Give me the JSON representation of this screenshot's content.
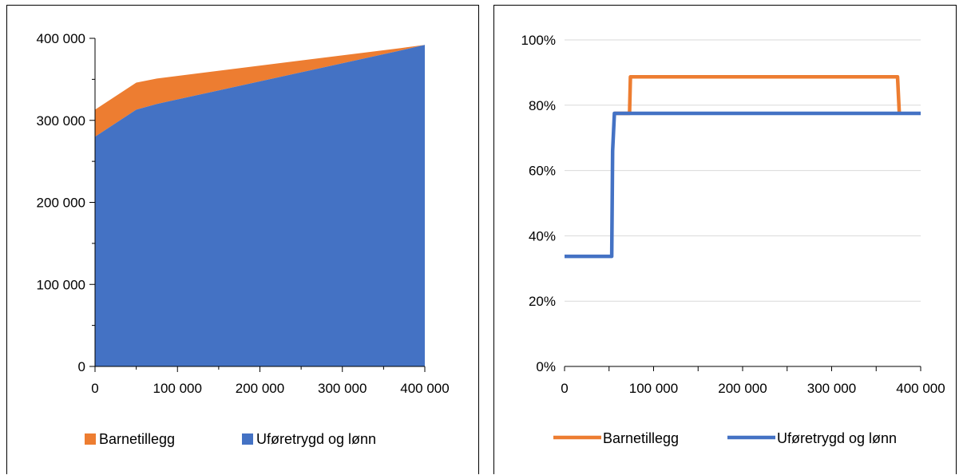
{
  "chart_data": [
    {
      "type": "area",
      "stacked": true,
      "x": [
        0,
        50000,
        75000,
        370000,
        400000
      ],
      "series": [
        {
          "name": "Uføretrygd og lønn",
          "color": "#4472C4",
          "values": [
            280000,
            313000,
            320000,
            385000,
            392000
          ]
        },
        {
          "name": "Barnetillegg",
          "color": "#ED7D31",
          "values": [
            33000,
            33000,
            31000,
            3000,
            0
          ]
        }
      ],
      "xlim": [
        0,
        400000
      ],
      "ylim": [
        0,
        400000
      ],
      "xticks": [
        0,
        100000,
        200000,
        300000,
        400000
      ],
      "xtick_labels": [
        "0",
        "100 000",
        "200 000",
        "300 000",
        "400 000"
      ],
      "yticks": [
        0,
        100000,
        200000,
        300000,
        400000
      ],
      "ytick_labels": [
        "0",
        "100 000",
        "200 000",
        "300 000",
        "400 000"
      ],
      "grid": false,
      "legend": "bottom"
    },
    {
      "type": "line",
      "x": [
        0,
        53000,
        54000,
        56000,
        73000,
        74000,
        76000,
        372000,
        374000,
        376000,
        400000
      ],
      "series": [
        {
          "name": "Barnetillegg",
          "color": "#ED7D31",
          "values": [
            null,
            null,
            null,
            0.775,
            0.775,
            0.887,
            0.887,
            0.887,
            0.887,
            0.775,
            null
          ]
        },
        {
          "name": "Uføretrygd og lønn",
          "color": "#4472C4",
          "values": [
            0.337,
            0.337,
            0.66,
            0.775,
            0.775,
            0.775,
            0.775,
            0.775,
            0.775,
            0.775,
            0.775
          ]
        }
      ],
      "xlim": [
        0,
        400000
      ],
      "ylim": [
        0,
        1
      ],
      "xticks": [
        0,
        100000,
        200000,
        300000,
        400000
      ],
      "xtick_labels": [
        "0",
        "100 000",
        "200 000",
        "300 000",
        "400 000"
      ],
      "yticks": [
        0,
        0.2,
        0.4,
        0.6,
        0.8,
        1.0
      ],
      "ytick_labels": [
        "0%",
        "20%",
        "40%",
        "60%",
        "80%",
        "100%"
      ],
      "grid": true,
      "legend": "bottom"
    }
  ]
}
